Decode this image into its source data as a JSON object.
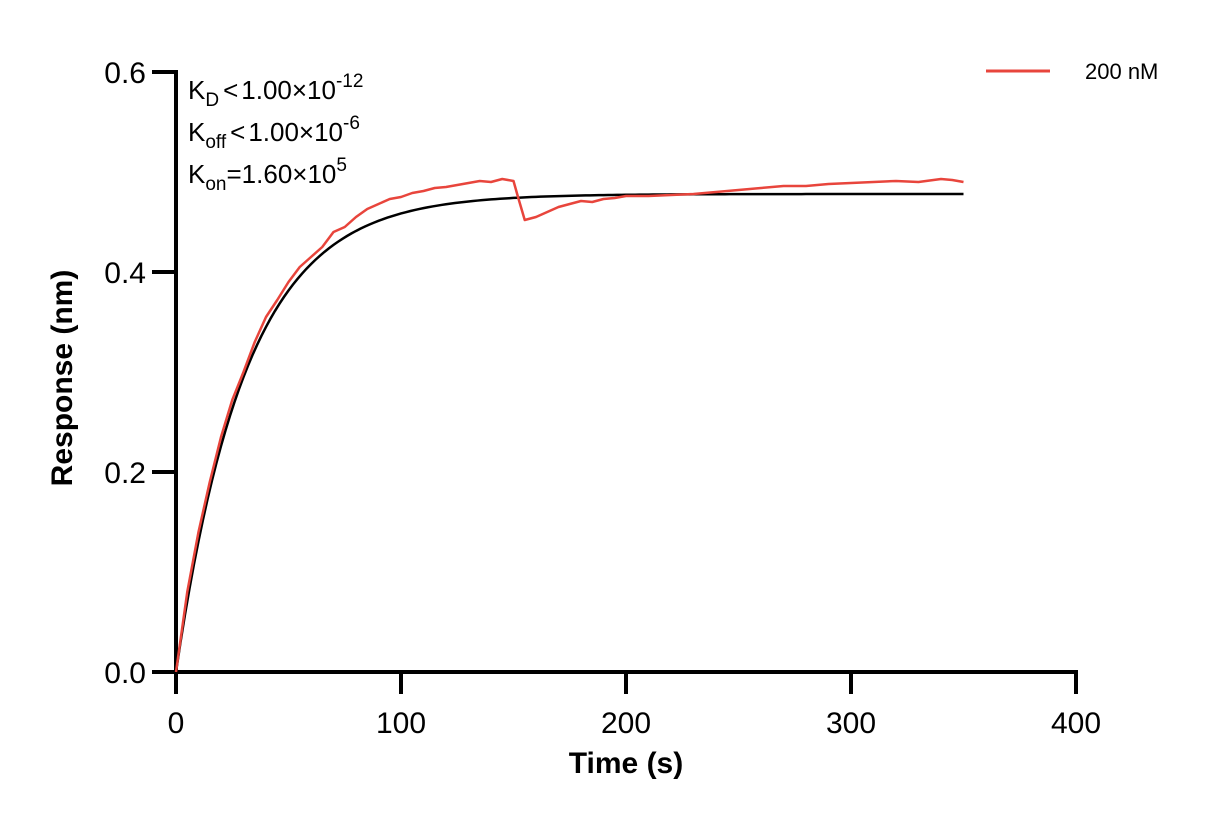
{
  "chart_data": {
    "type": "line",
    "xlabel": "Time (s)",
    "ylabel": "Response (nm)",
    "xlim": [
      0,
      400
    ],
    "ylim": [
      0,
      0.6
    ],
    "x_ticks": [
      "0",
      "100",
      "200",
      "300",
      "400"
    ],
    "y_ticks": [
      "0.0",
      "0.2",
      "0.4",
      "0.6"
    ],
    "x_tick_values": [
      0,
      100,
      200,
      300,
      400
    ],
    "y_tick_values": [
      0,
      0.2,
      0.4,
      0.6
    ],
    "grid": false,
    "legend": {
      "position": "top-right",
      "entries": [
        "200 nM"
      ]
    },
    "annotations": {
      "kd": {
        "base": "K",
        "sub": "D",
        "rel": "<",
        "value": "1.00×10",
        "exp": "-12"
      },
      "koff": {
        "base": "K",
        "sub": "off",
        "rel": "<",
        "value": "1.00×10",
        "exp": "-6"
      },
      "kon": {
        "base": "K",
        "sub": "on",
        "rel": "=",
        "value": "1.60×10",
        "exp": "5"
      }
    },
    "series": [
      {
        "name": "200 nM",
        "color": "#e8453c",
        "x": [
          0,
          5,
          10,
          15,
          20,
          25,
          30,
          35,
          40,
          45,
          50,
          55,
          60,
          65,
          70,
          75,
          80,
          85,
          90,
          95,
          100,
          105,
          110,
          115,
          120,
          125,
          130,
          135,
          140,
          145,
          150,
          152,
          155,
          160,
          165,
          170,
          175,
          180,
          185,
          190,
          195,
          200,
          210,
          220,
          230,
          240,
          250,
          260,
          270,
          280,
          290,
          300,
          310,
          320,
          330,
          340,
          345,
          350
        ],
        "y": [
          0.0,
          0.08,
          0.14,
          0.19,
          0.235,
          0.272,
          0.3,
          0.33,
          0.355,
          0.372,
          0.39,
          0.405,
          0.415,
          0.425,
          0.44,
          0.445,
          0.455,
          0.463,
          0.468,
          0.473,
          0.475,
          0.479,
          0.481,
          0.484,
          0.485,
          0.487,
          0.489,
          0.491,
          0.49,
          0.493,
          0.491,
          0.475,
          0.452,
          0.455,
          0.46,
          0.465,
          0.468,
          0.471,
          0.47,
          0.473,
          0.474,
          0.476,
          0.476,
          0.477,
          0.478,
          0.48,
          0.482,
          0.484,
          0.486,
          0.486,
          0.488,
          0.489,
          0.49,
          0.491,
          0.49,
          0.493,
          0.492,
          0.49
        ]
      },
      {
        "name": "",
        "color": "#000000",
        "fit": {
          "plateau": 0.478,
          "k": 0.032,
          "x_max": 350
        }
      }
    ]
  }
}
